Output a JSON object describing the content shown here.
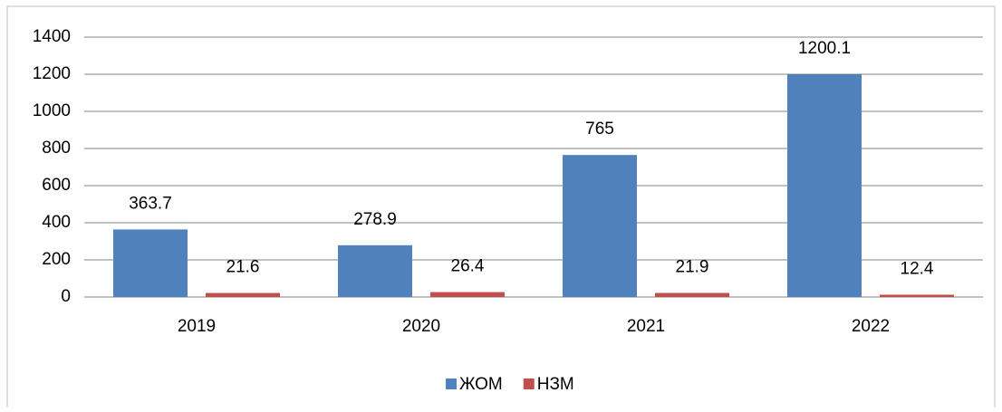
{
  "chart_data": {
    "type": "bar",
    "categories": [
      "2019",
      "2020",
      "2021",
      "2022"
    ],
    "series": [
      {
        "name": "ЖОМ",
        "color": "#4f81bd",
        "values": [
          363.7,
          278.9,
          765,
          1200.1
        ]
      },
      {
        "name": "НЗМ",
        "color": "#c0504d",
        "values": [
          21.6,
          26.4,
          21.9,
          12.4
        ]
      }
    ],
    "ylim": [
      0,
      1400
    ],
    "yticks": [
      0,
      200,
      400,
      600,
      800,
      1000,
      1200,
      1400
    ],
    "grid": true,
    "legend": "bottom"
  }
}
